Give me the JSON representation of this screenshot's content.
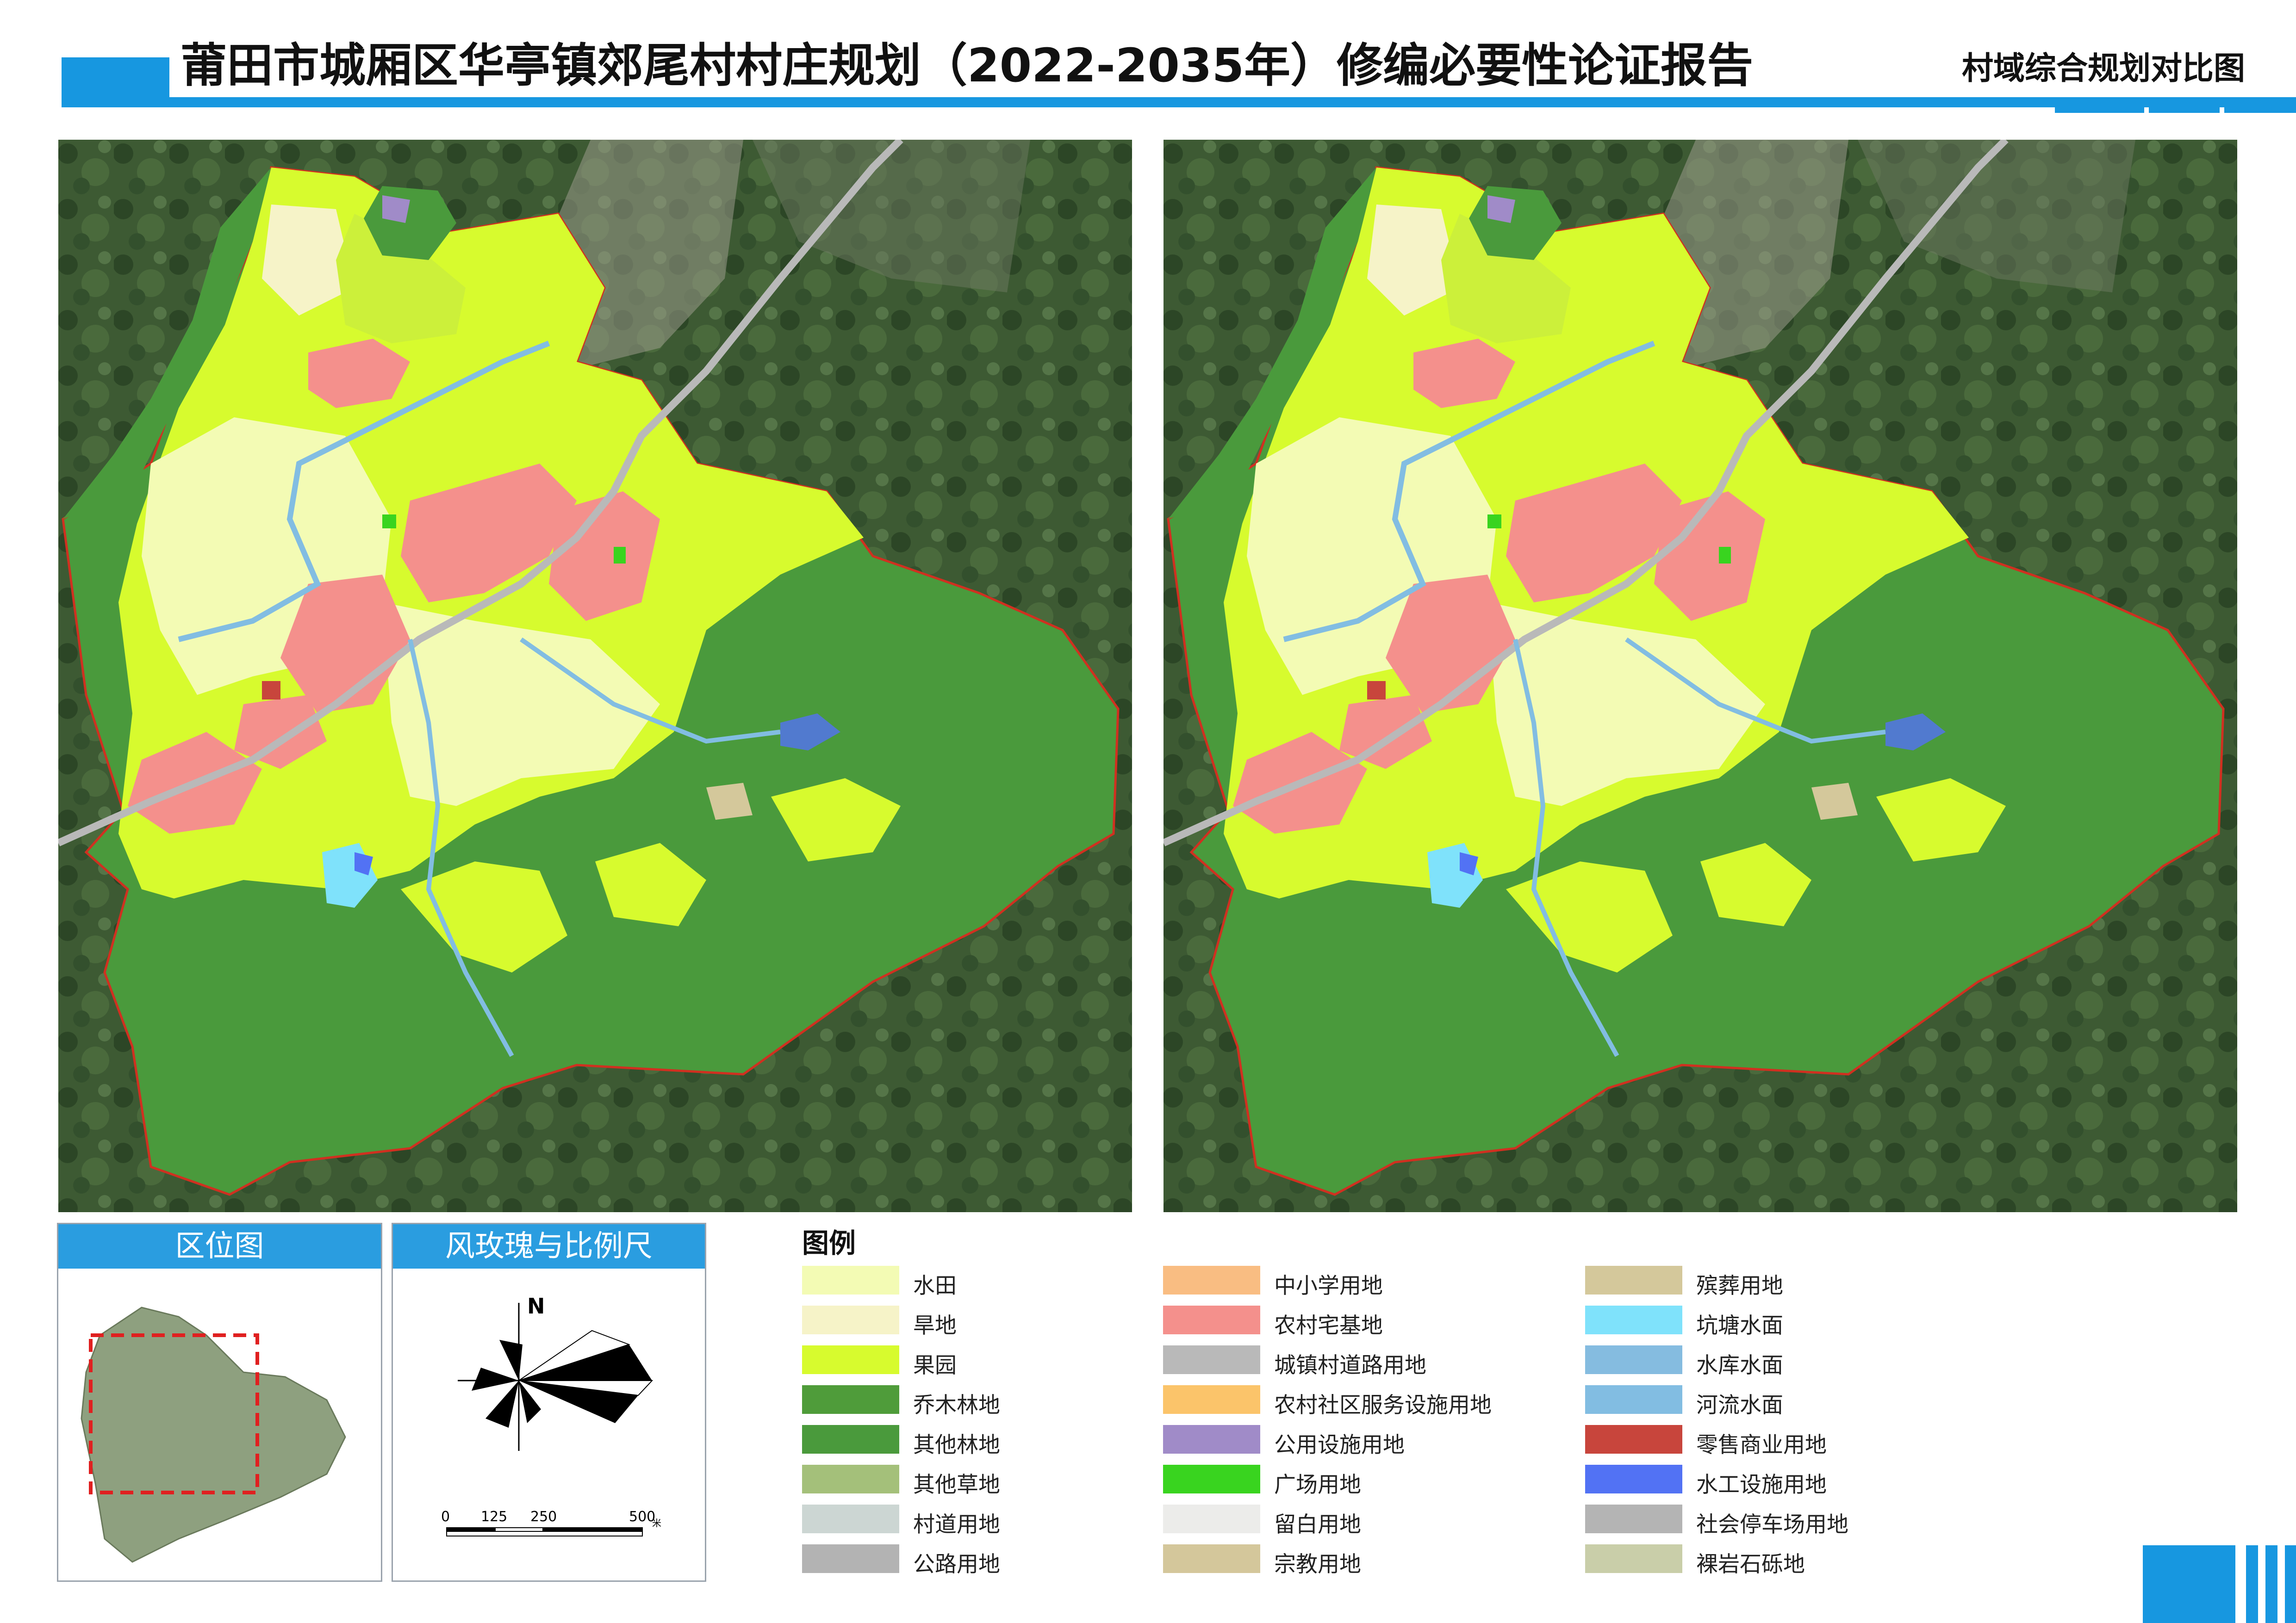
{
  "header": {
    "title": "莆田市城厢区华亭镇郊尾村村庄规划（2022-2035年）修编必要性论证报告",
    "subtitle": "村域综合规划对比图",
    "accent_color": "#1797e0"
  },
  "panels": {
    "location_title": "区位图",
    "compass_title": "风玫瑰与比例尺",
    "north_label": "N",
    "scale_ticks": [
      "0",
      "125",
      "250",
      "500"
    ],
    "scale_unit": "米"
  },
  "legend": {
    "title": "图例",
    "items": [
      {
        "label": "水田",
        "color": "#f3fbb4"
      },
      {
        "label": "旱地",
        "color": "#f6f3c8"
      },
      {
        "label": "果园",
        "color": "#d7fb2e"
      },
      {
        "label": "乔木林地",
        "color": "#4f9c3a"
      },
      {
        "label": "其他林地",
        "color": "#4a9a3c"
      },
      {
        "label": "其他草地",
        "color": "#a4c07a"
      },
      {
        "label": "村道用地",
        "color": "#ccd6d3"
      },
      {
        "label": "公路用地",
        "color": "#b3b3b3"
      },
      {
        "label": "中小学用地",
        "color": "#f9bd82"
      },
      {
        "label": "农村宅基地",
        "color": "#f4908c"
      },
      {
        "label": "城镇村道路用地",
        "color": "#b9b9b9"
      },
      {
        "label": "农村社区服务设施用地",
        "color": "#fbc46a"
      },
      {
        "label": "公用设施用地",
        "color": "#a08bc8"
      },
      {
        "label": "广场用地",
        "color": "#39d41f"
      },
      {
        "label": "留白用地",
        "color": "#ececea"
      },
      {
        "label": "宗教用地",
        "color": "#d4c79b"
      },
      {
        "label": "殡葬用地",
        "color": "#d4c89b"
      },
      {
        "label": "坑塘水面",
        "color": "#7fe2fb"
      },
      {
        "label": "水库水面",
        "color": "#85bce0"
      },
      {
        "label": "河流水面",
        "color": "#82bde2"
      },
      {
        "label": "零售商业用地",
        "color": "#c8453c"
      },
      {
        "label": "水工设施用地",
        "color": "#5272f4"
      },
      {
        "label": "社会停车场用地",
        "color": "#b4b4b4"
      },
      {
        "label": "裸岩石砾地",
        "color": "#c9cea9"
      }
    ]
  }
}
